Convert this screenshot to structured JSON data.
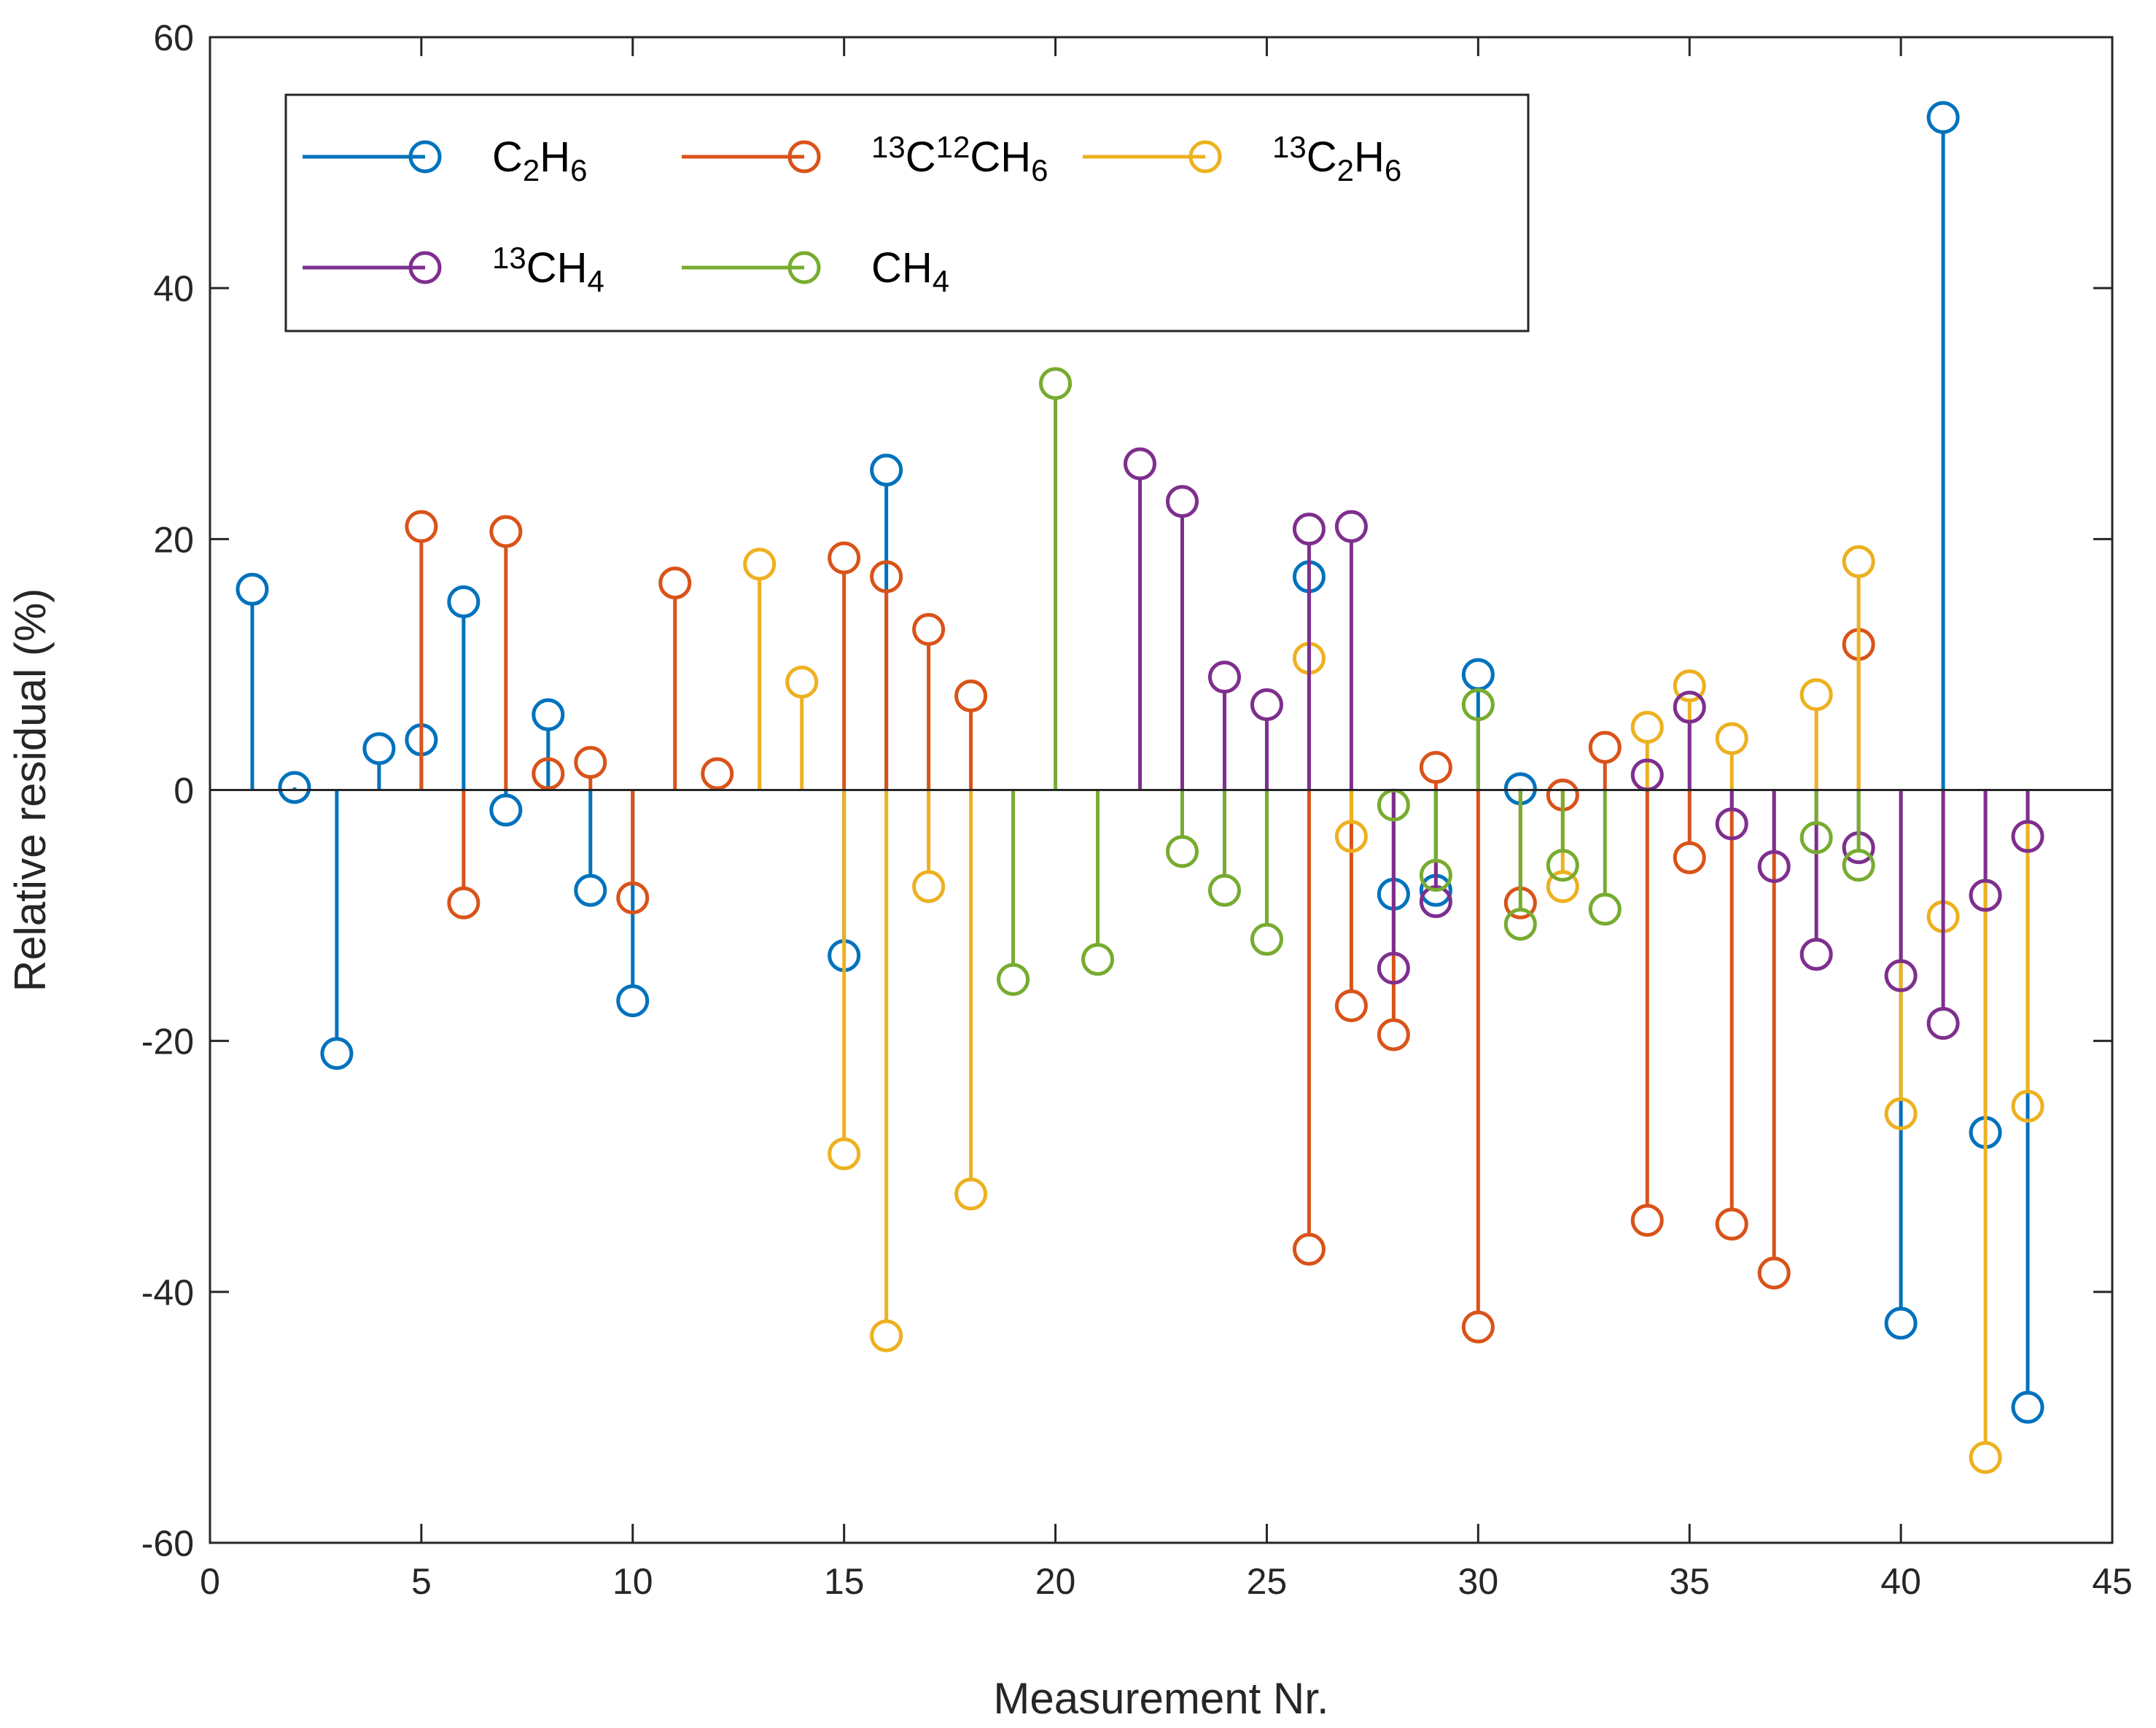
{
  "chart_data": {
    "type": "stem",
    "xlabel": "Measurement Nr.",
    "ylabel": "Relative residual (%)",
    "xlim": [
      0,
      45
    ],
    "ylim": [
      -60,
      60
    ],
    "xticks": [
      0,
      5,
      10,
      15,
      20,
      25,
      30,
      35,
      40,
      45
    ],
    "yticks": [
      -60,
      -40,
      -20,
      0,
      20,
      40,
      60
    ],
    "grid": false,
    "legend_location": "top-left",
    "series": [
      {
        "name": "C2H6",
        "legend": {
          "parts": [
            {
              "t": "C"
            },
            {
              "t": "2",
              "sub": true
            },
            {
              "t": "H"
            },
            {
              "t": "6",
              "sub": true
            }
          ]
        },
        "color": "#0072BD",
        "points": [
          [
            1,
            16
          ],
          [
            2,
            0.2
          ],
          [
            3,
            -21
          ],
          [
            4,
            3.3
          ],
          [
            5,
            4
          ],
          [
            6,
            15
          ],
          [
            7,
            -1.6
          ],
          [
            8,
            6
          ],
          [
            9,
            -8
          ],
          [
            10,
            -16.8
          ],
          [
            15,
            -13.2
          ],
          [
            16,
            25.5
          ],
          [
            26,
            17
          ],
          [
            28,
            -8.3
          ],
          [
            29,
            -8
          ],
          [
            30,
            9.2
          ],
          [
            31,
            0.1
          ],
          [
            40,
            -42.5
          ],
          [
            41,
            53.6
          ],
          [
            42,
            -27.3
          ],
          [
            43,
            -49.2
          ]
        ]
      },
      {
        "name": "13C12CH6",
        "legend": {
          "parts": [
            {
              "t": "13",
              "sup": true
            },
            {
              "t": "C"
            },
            {
              "t": "12",
              "sup": true
            },
            {
              "t": "CH"
            },
            {
              "t": "6",
              "sub": true
            }
          ]
        },
        "color": "#D95319",
        "points": [
          [
            5,
            21
          ],
          [
            6,
            -9
          ],
          [
            7,
            20.6
          ],
          [
            8,
            1.3
          ],
          [
            9,
            2.2
          ],
          [
            10,
            -8.6
          ],
          [
            11,
            16.5
          ],
          [
            12,
            1.3
          ],
          [
            15,
            18.5
          ],
          [
            16,
            17
          ],
          [
            17,
            12.8
          ],
          [
            18,
            7.5
          ],
          [
            26,
            -36.6
          ],
          [
            27,
            -17.2
          ],
          [
            28,
            -19.5
          ],
          [
            29,
            1.8
          ],
          [
            30,
            -42.8
          ],
          [
            31,
            -9
          ],
          [
            32,
            -0.4
          ],
          [
            33,
            3.4
          ],
          [
            34,
            -34.3
          ],
          [
            35,
            -5.4
          ],
          [
            36,
            -34.6
          ],
          [
            37,
            -38.5
          ],
          [
            39,
            11.6
          ]
        ]
      },
      {
        "name": "13C2H6",
        "legend": {
          "parts": [
            {
              "t": "13",
              "sup": true
            },
            {
              "t": "C"
            },
            {
              "t": "2",
              "sub": true
            },
            {
              "t": "H"
            },
            {
              "t": "6",
              "sub": true
            }
          ]
        },
        "color": "#EDB120",
        "points": [
          [
            13,
            18
          ],
          [
            14,
            8.6
          ],
          [
            15,
            -29
          ],
          [
            16,
            -43.5
          ],
          [
            17,
            -7.7
          ],
          [
            18,
            -32.2
          ],
          [
            26,
            10.5
          ],
          [
            27,
            -3.7
          ],
          [
            32,
            -7.7
          ],
          [
            34,
            5
          ],
          [
            35,
            8.3
          ],
          [
            36,
            4.1
          ],
          [
            38,
            7.6
          ],
          [
            39,
            18.2
          ],
          [
            40,
            -25.8
          ],
          [
            41,
            -10.1
          ],
          [
            42,
            -53.2
          ],
          [
            43,
            -25.2
          ]
        ]
      },
      {
        "name": "13CH4",
        "legend": {
          "parts": [
            {
              "t": "13",
              "sup": true
            },
            {
              "t": "CH"
            },
            {
              "t": "4",
              "sub": true
            }
          ]
        },
        "color": "#7E2F8E",
        "points": [
          [
            22,
            26
          ],
          [
            23,
            23
          ],
          [
            24,
            9
          ],
          [
            25,
            6.8
          ],
          [
            26,
            20.8
          ],
          [
            27,
            21
          ],
          [
            28,
            -14.2
          ],
          [
            29,
            -8.9
          ],
          [
            34,
            1.2
          ],
          [
            35,
            6.6
          ],
          [
            36,
            -2.7
          ],
          [
            37,
            -6.1
          ],
          [
            38,
            -13.1
          ],
          [
            39,
            -4.6
          ],
          [
            40,
            -14.8
          ],
          [
            41,
            -18.6
          ],
          [
            42,
            -8.4
          ],
          [
            43,
            -3.7
          ]
        ]
      },
      {
        "name": "CH4",
        "legend": {
          "parts": [
            {
              "t": "CH"
            },
            {
              "t": "4",
              "sub": true
            }
          ]
        },
        "color": "#77AC30",
        "points": [
          [
            19,
            -15.1
          ],
          [
            20,
            32.4
          ],
          [
            21,
            -13.5
          ],
          [
            23,
            -4.9
          ],
          [
            24,
            -8
          ],
          [
            25,
            -11.9
          ],
          [
            28,
            -1.2
          ],
          [
            29,
            -6.8
          ],
          [
            30,
            6.8
          ],
          [
            31,
            -10.7
          ],
          [
            32,
            -6
          ],
          [
            33,
            -9.5
          ],
          [
            38,
            -3.8
          ],
          [
            39,
            -6
          ]
        ]
      }
    ]
  }
}
